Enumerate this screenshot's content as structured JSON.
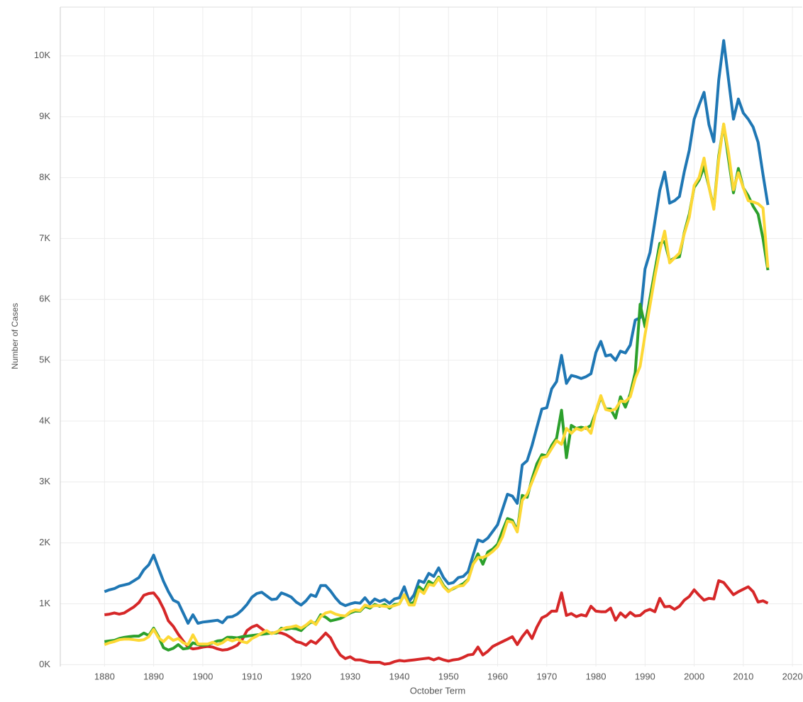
{
  "chart_data": {
    "type": "line",
    "xlabel": "October Term",
    "ylabel": "Number of Cases",
    "x": [
      1880,
      1881,
      1882,
      1883,
      1884,
      1885,
      1886,
      1887,
      1888,
      1889,
      1890,
      1891,
      1892,
      1893,
      1894,
      1895,
      1896,
      1897,
      1898,
      1899,
      1900,
      1901,
      1902,
      1903,
      1904,
      1905,
      1906,
      1907,
      1908,
      1909,
      1910,
      1911,
      1912,
      1913,
      1914,
      1915,
      1916,
      1917,
      1918,
      1919,
      1920,
      1921,
      1922,
      1923,
      1924,
      1925,
      1926,
      1927,
      1928,
      1929,
      1930,
      1931,
      1932,
      1933,
      1934,
      1935,
      1936,
      1937,
      1938,
      1939,
      1940,
      1941,
      1942,
      1943,
      1944,
      1945,
      1946,
      1947,
      1948,
      1949,
      1950,
      1951,
      1952,
      1953,
      1954,
      1955,
      1956,
      1957,
      1958,
      1959,
      1960,
      1961,
      1962,
      1963,
      1964,
      1965,
      1966,
      1967,
      1968,
      1969,
      1970,
      1971,
      1972,
      1973,
      1974,
      1975,
      1976,
      1977,
      1978,
      1979,
      1980,
      1981,
      1982,
      1983,
      1984,
      1985,
      1986,
      1987,
      1988,
      1989,
      1990,
      1991,
      1992,
      1993,
      1994,
      1995,
      1996,
      1997,
      1998,
      1999,
      2000,
      2001,
      2002,
      2003,
      2004,
      2005,
      2006,
      2007,
      2008,
      2009,
      2010,
      2011,
      2012,
      2013,
      2014,
      2015
    ],
    "series": [
      {
        "color": "#1f77b4",
        "values": [
          1200,
          1230,
          1250,
          1290,
          1310,
          1330,
          1380,
          1430,
          1560,
          1640,
          1800,
          1580,
          1370,
          1200,
          1060,
          1020,
          850,
          680,
          820,
          680,
          700,
          710,
          720,
          730,
          690,
          780,
          790,
          830,
          900,
          990,
          1110,
          1170,
          1190,
          1130,
          1070,
          1080,
          1180,
          1150,
          1110,
          1030,
          980,
          1050,
          1150,
          1120,
          1300,
          1300,
          1210,
          1100,
          1010,
          970,
          1000,
          1020,
          1010,
          1100,
          1000,
          1080,
          1040,
          1070,
          1010,
          1080,
          1100,
          1280,
          1040,
          1150,
          1380,
          1350,
          1500,
          1450,
          1590,
          1430,
          1330,
          1350,
          1430,
          1450,
          1530,
          1800,
          2050,
          2020,
          2080,
          2190,
          2300,
          2550,
          2800,
          2770,
          2650,
          3280,
          3350,
          3600,
          3900,
          4200,
          4220,
          4530,
          4650,
          5080,
          4620,
          4750,
          4730,
          4700,
          4730,
          4780,
          5130,
          5310,
          5070,
          5090,
          5000,
          5150,
          5120,
          5250,
          5660,
          5700,
          6500,
          6770,
          7280,
          7790,
          8090,
          7580,
          7620,
          7690,
          8100,
          8450,
          8960,
          9190,
          9400,
          8870,
          8590,
          9600,
          10250,
          9600,
          8960,
          9290,
          9060,
          8960,
          8830,
          8580,
          8050,
          7550
        ]
      },
      {
        "color": "#d62728",
        "values": [
          820,
          830,
          850,
          830,
          850,
          900,
          950,
          1020,
          1140,
          1170,
          1180,
          1080,
          920,
          720,
          630,
          500,
          390,
          290,
          260,
          270,
          290,
          300,
          290,
          260,
          240,
          250,
          280,
          320,
          410,
          560,
          620,
          650,
          590,
          530,
          520,
          530,
          520,
          490,
          440,
          380,
          360,
          320,
          390,
          350,
          430,
          520,
          440,
          280,
          160,
          100,
          130,
          80,
          80,
          60,
          40,
          40,
          40,
          10,
          20,
          50,
          70,
          60,
          70,
          80,
          90,
          100,
          110,
          80,
          110,
          80,
          60,
          80,
          90,
          120,
          160,
          170,
          290,
          160,
          220,
          300,
          340,
          380,
          420,
          460,
          330,
          460,
          560,
          430,
          620,
          770,
          810,
          880,
          880,
          1180,
          810,
          840,
          790,
          820,
          800,
          960,
          880,
          870,
          870,
          930,
          730,
          850,
          780,
          860,
          800,
          810,
          880,
          910,
          870,
          1090,
          950,
          960,
          910,
          960,
          1060,
          1120,
          1230,
          1140,
          1060,
          1090,
          1080,
          1380,
          1350,
          1250,
          1150,
          1200,
          1240,
          1280,
          1200,
          1030,
          1050,
          1010
        ]
      },
      {
        "color": "#2ca02c",
        "values": [
          380,
          390,
          400,
          430,
          450,
          460,
          470,
          470,
          520,
          480,
          600,
          460,
          280,
          240,
          270,
          330,
          260,
          270,
          360,
          330,
          320,
          330,
          360,
          390,
          400,
          450,
          450,
          440,
          460,
          470,
          480,
          490,
          500,
          510,
          520,
          520,
          600,
          580,
          600,
          590,
          560,
          640,
          700,
          680,
          820,
          780,
          720,
          740,
          760,
          800,
          850,
          880,
          880,
          960,
          930,
          990,
          960,
          990,
          930,
          990,
          1000,
          1150,
          990,
          1030,
          1280,
          1210,
          1370,
          1320,
          1440,
          1300,
          1210,
          1250,
          1290,
          1330,
          1400,
          1650,
          1820,
          1650,
          1850,
          1900,
          1980,
          2200,
          2400,
          2370,
          2200,
          2780,
          2750,
          3050,
          3300,
          3450,
          3430,
          3600,
          3720,
          4180,
          3400,
          3930,
          3880,
          3900,
          3880,
          3930,
          4150,
          4400,
          4200,
          4200,
          4050,
          4400,
          4230,
          4450,
          4800,
          5920,
          5550,
          6020,
          6470,
          6920,
          6950,
          6630,
          6680,
          6700,
          7100,
          7400,
          7840,
          7960,
          8180,
          7850,
          7500,
          8350,
          8870,
          8300,
          7750,
          8150,
          7830,
          7700,
          7530,
          7400,
          7000,
          6480
        ]
      },
      {
        "color": "#fdd835",
        "values": [
          330,
          360,
          380,
          410,
          420,
          420,
          410,
          400,
          410,
          460,
          580,
          440,
          380,
          460,
          400,
          430,
          360,
          330,
          490,
          340,
          340,
          340,
          370,
          330,
          360,
          420,
          390,
          420,
          380,
          360,
          430,
          470,
          520,
          560,
          510,
          540,
          580,
          610,
          620,
          640,
          600,
          650,
          720,
          660,
          790,
          850,
          870,
          830,
          810,
          800,
          870,
          900,
          890,
          980,
          950,
          970,
          970,
          960,
          950,
          970,
          1000,
          1150,
          980,
          980,
          1230,
          1170,
          1320,
          1300,
          1420,
          1280,
          1200,
          1260,
          1290,
          1300,
          1390,
          1650,
          1760,
          1760,
          1800,
          1860,
          1940,
          2100,
          2360,
          2340,
          2180,
          2700,
          2800,
          3000,
          3200,
          3400,
          3420,
          3550,
          3680,
          3620,
          3880,
          3800,
          3880,
          3850,
          3900,
          3800,
          4160,
          4420,
          4190,
          4170,
          4200,
          4330,
          4320,
          4400,
          4700,
          4900,
          5420,
          5900,
          6380,
          6800,
          7120,
          6600,
          6680,
          6760,
          7080,
          7350,
          7870,
          8000,
          8320,
          7850,
          7480,
          8300,
          8880,
          8400,
          7800,
          8080,
          7830,
          7620,
          7600,
          7570,
          7500,
          6520
        ]
      }
    ],
    "xlim": [
      1871,
      2022
    ],
    "xticks": [
      1880,
      1890,
      1900,
      1910,
      1920,
      1930,
      1940,
      1950,
      1960,
      1970,
      1980,
      1990,
      2000,
      2010,
      2020
    ],
    "ylim": [
      -30,
      10800
    ],
    "yticks": [
      {
        "value": 0,
        "label": "0K"
      },
      {
        "value": 1000,
        "label": "1K"
      },
      {
        "value": 2000,
        "label": "2K"
      },
      {
        "value": 3000,
        "label": "3K"
      },
      {
        "value": 4000,
        "label": "4K"
      },
      {
        "value": 5000,
        "label": "5K"
      },
      {
        "value": 6000,
        "label": "6K"
      },
      {
        "value": 7000,
        "label": "7K"
      },
      {
        "value": 8000,
        "label": "8K"
      },
      {
        "value": 9000,
        "label": "9K"
      },
      {
        "value": 10000,
        "label": "10K"
      }
    ],
    "grid": true
  }
}
